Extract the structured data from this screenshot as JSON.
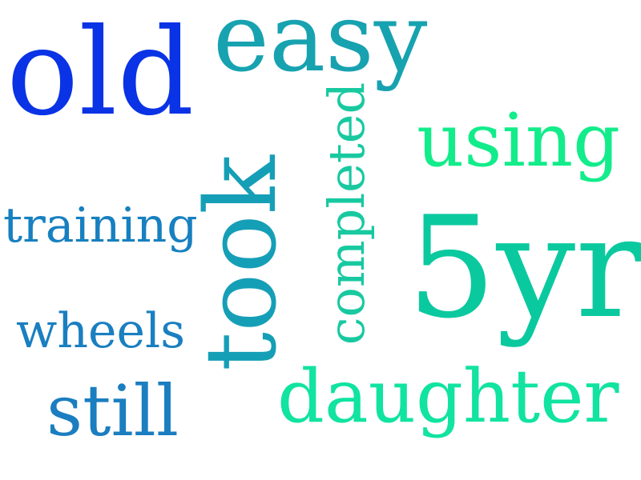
{
  "words": [
    {
      "text": "easy",
      "color": "#17a2b0"
    },
    {
      "text": "old",
      "color": "#0a33e6"
    },
    {
      "text": "using",
      "color": "#12ec8a"
    },
    {
      "text": "training",
      "color": "#1780c0"
    },
    {
      "text": "took",
      "color": "#159fb7"
    },
    {
      "text": "completed",
      "color": "#18c9a0"
    },
    {
      "text": "5yr",
      "color": "#0bc99f"
    },
    {
      "text": "wheels",
      "color": "#1a7fc1"
    },
    {
      "text": "still",
      "color": "#1a7ec0"
    },
    {
      "text": "daughter",
      "color": "#11e3a0"
    }
  ]
}
